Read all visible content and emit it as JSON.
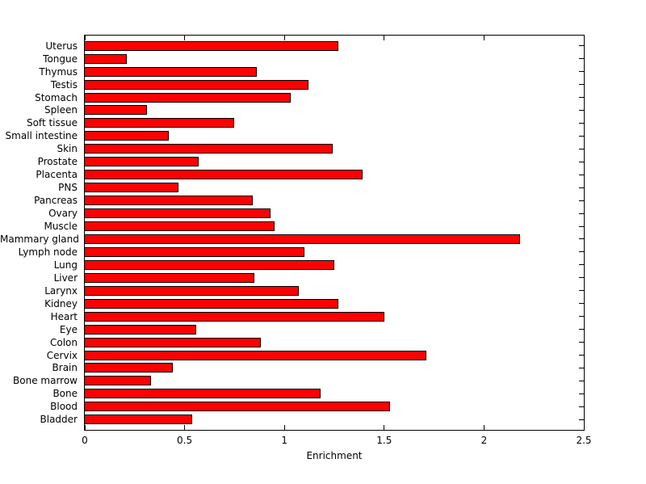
{
  "chart_data": {
    "type": "bar",
    "orientation": "horizontal",
    "title": "",
    "xlabel": "Enrichment",
    "ylabel": "",
    "xlim": [
      0,
      2.5
    ],
    "xticks": [
      0,
      0.5,
      1,
      1.5,
      2,
      2.5
    ],
    "xtick_labels": [
      "0",
      "0.5",
      "1",
      "1.5",
      "2",
      "2.5"
    ],
    "grid": false,
    "legend": "none",
    "bar_color": "#ff0000",
    "bar_edge_color": "#000000",
    "axis_color": "#000000",
    "background_color": "#ffffff",
    "categories": [
      "Uterus",
      "Tongue",
      "Thymus",
      "Testis",
      "Stomach",
      "Spleen",
      "Soft tissue",
      "Small intestine",
      "Skin",
      "Prostate",
      "Placenta",
      "PNS",
      "Pancreas",
      "Ovary",
      "Muscle",
      "Mammary gland",
      "Lymph node",
      "Lung",
      "Liver",
      "Larynx",
      "Kidney",
      "Heart",
      "Eye",
      "Colon",
      "Cervix",
      "Brain",
      "Bone marrow",
      "Bone",
      "Blood",
      "Bladder"
    ],
    "values": [
      1.27,
      0.21,
      0.86,
      1.12,
      1.03,
      0.31,
      0.75,
      0.42,
      1.24,
      0.57,
      1.39,
      0.47,
      0.84,
      0.93,
      0.95,
      2.18,
      1.1,
      1.25,
      0.85,
      1.07,
      1.27,
      1.5,
      0.56,
      0.88,
      1.71,
      0.44,
      0.33,
      1.18,
      1.53,
      0.54
    ]
  }
}
